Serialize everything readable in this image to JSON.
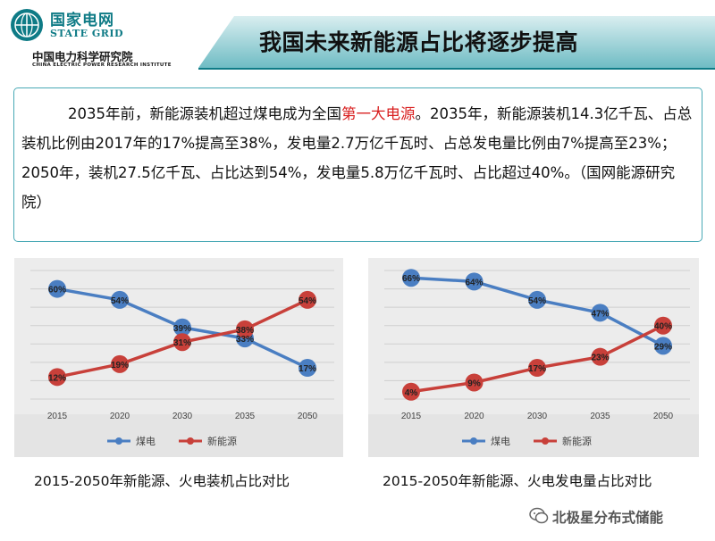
{
  "header": {
    "logo_cn": "国家电网",
    "logo_en": "STATE GRID",
    "institute_cn": "中国电力科学研究院",
    "institute_en": "CHINA ELECTRIC POWER RESEARCH INSTITUTE",
    "title": "我国未来新能源占比将逐步提高"
  },
  "summary": {
    "part1": "2035年前，新能源装机超过煤电成为全国",
    "highlight": "第一大电源",
    "part2": "。2035年，新能源装机14.3亿千瓦、占总装机比例由2017年的17%提高至38%，发电量2.7万亿千瓦时、占总发电量比例由7%提高至23%；2050年，装机27.5亿千瓦、占比达到54%，发电量5.8万亿千瓦时、占比超过40%。（国网能源研究院）"
  },
  "colors": {
    "coal": "#4a7ec2",
    "new_energy": "#c8403a",
    "accent": "#0f7b86"
  },
  "chart_data": [
    {
      "type": "line",
      "caption": "2015-2050年新能源、火电装机占比对比",
      "categories": [
        "2015",
        "2020",
        "2030",
        "2035",
        "2050"
      ],
      "ylim": [
        0,
        70
      ],
      "legend_position": "bottom",
      "grid": true,
      "series": [
        {
          "name": "煤电",
          "color": "#4a7ec2",
          "values": [
            60,
            54,
            39,
            33,
            17
          ],
          "labels": [
            "60%",
            "54%",
            "39%",
            "33%",
            "17%"
          ]
        },
        {
          "name": "新能源",
          "color": "#c8403a",
          "values": [
            12,
            19,
            31,
            38,
            54
          ],
          "labels": [
            "12%",
            "19%",
            "31%",
            "38%",
            "54%"
          ]
        }
      ]
    },
    {
      "type": "line",
      "caption": "2015-2050年新能源、火电发电量占比对比",
      "categories": [
        "2015",
        "2020",
        "2030",
        "2035",
        "2050"
      ],
      "ylim": [
        0,
        70
      ],
      "legend_position": "bottom",
      "grid": true,
      "series": [
        {
          "name": "煤电",
          "color": "#4a7ec2",
          "values": [
            66,
            64,
            54,
            47,
            29
          ],
          "labels": [
            "66%",
            "64%",
            "54%",
            "47%",
            "29%"
          ]
        },
        {
          "name": "新能源",
          "color": "#c8403a",
          "values": [
            4,
            9,
            17,
            23,
            40
          ],
          "labels": [
            "4%",
            "9%",
            "17%",
            "23%",
            "40%"
          ]
        }
      ]
    }
  ],
  "watermark": {
    "text": "北极星分布式储能"
  }
}
